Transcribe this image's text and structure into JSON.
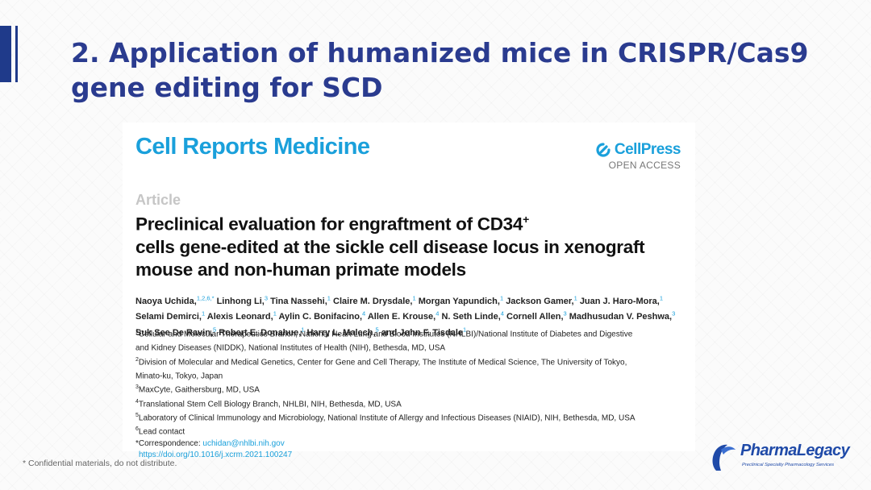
{
  "slide": {
    "title": "2. Application of humanized mice in CRISPR/Cas9 gene editing for SCD",
    "footer_note": "* Confidential materials, do not distribute."
  },
  "paper": {
    "journal": "Cell Reports Medicine",
    "publisher": "CellPress",
    "access": "OPEN ACCESS",
    "article_type": "Article",
    "title_main": "Preclinical evaluation for engraftment of CD34",
    "title_sup": "+",
    "title_rest": "cells gene-edited at the sickle cell disease locus in xenograft mouse and non-human primate models",
    "authors": [
      {
        "name": "Naoya Uchida,",
        "sup": "1,2,6,*"
      },
      {
        "name": "Linhong Li,",
        "sup": "3"
      },
      {
        "name": "Tina Nassehi,",
        "sup": "1"
      },
      {
        "name": "Claire M. Drysdale,",
        "sup": "1"
      },
      {
        "name": "Morgan Yapundich,",
        "sup": "1"
      },
      {
        "name": "Jackson Gamer,",
        "sup": "1"
      },
      {
        "name": "Juan J. Haro-Mora,",
        "sup": "1"
      },
      {
        "name": "Selami Demirci,",
        "sup": "1"
      },
      {
        "name": "Alexis Leonard,",
        "sup": "1"
      },
      {
        "name": "Aylin C. Bonifacino,",
        "sup": "4"
      },
      {
        "name": "Allen E. Krouse,",
        "sup": "4"
      },
      {
        "name": "N. Seth Linde,",
        "sup": "4"
      },
      {
        "name": "Cornell Allen,",
        "sup": "3"
      },
      {
        "name": "Madhusudan V. Peshwa,",
        "sup": "3"
      },
      {
        "name": "Suk See De Ravin,",
        "sup": "5"
      },
      {
        "name": "Robert E. Donahue,",
        "sup": "1"
      },
      {
        "name": "Harry L. Malech,",
        "sup": "5"
      },
      {
        "name": "and John F. Tisdale",
        "sup": "1"
      }
    ],
    "affiliations": [
      {
        "num": "1",
        "text": "Cellular and Molecular Therapeutics Branch, National Heart Lung and Blood Institutes (NHLBI)/National Institute of Diabetes and Digestive"
      },
      {
        "num": "",
        "text": "and Kidney Diseases (NIDDK), National Institutes of Health (NIH), Bethesda, MD, USA"
      },
      {
        "num": "2",
        "text": "Division of Molecular and Medical Genetics, Center for Gene and Cell Therapy, The Institute of Medical Science, The University of Tokyo,"
      },
      {
        "num": "",
        "text": "Minato-ku, Tokyo, Japan"
      },
      {
        "num": "3",
        "text": "MaxCyte, Gaithersburg, MD, USA"
      },
      {
        "num": "4",
        "text": "Translational Stem Cell Biology Branch, NHLBI, NIH, Bethesda, MD, USA"
      },
      {
        "num": "5",
        "text": "Laboratory of Clinical Immunology and Microbiology, National Institute of Allergy and Infectious Diseases (NIAID), NIH, Bethesda, MD, USA"
      },
      {
        "num": "6",
        "text": "Lead contact"
      }
    ],
    "correspondence_label": "*Correspondence:",
    "email": "uchidan@nhlbi.nih.gov",
    "doi": "https://doi.org/10.1016/j.xcrm.2021.100247"
  },
  "logo": {
    "name": "PharmaLegacy",
    "tagline": "Preclinical Specialty Pharmacology Services"
  },
  "colors": {
    "title_blue": "#2a3b8f",
    "cell_blue": "#1aa0db",
    "accent_bar": "#1f3a8a"
  }
}
